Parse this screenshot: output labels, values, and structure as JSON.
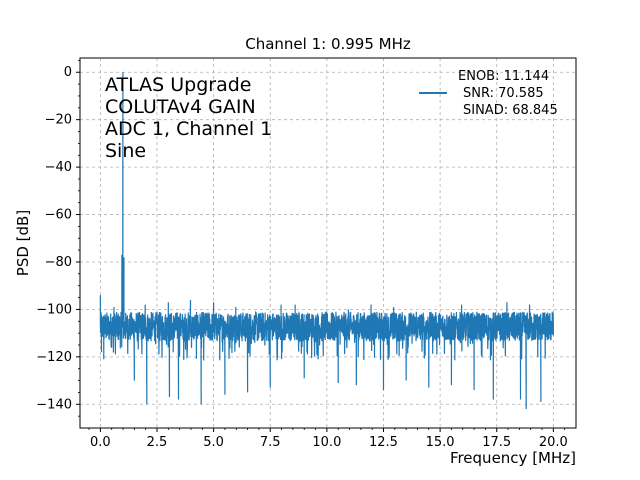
{
  "chart_data": {
    "type": "line",
    "title": "Channel 1: 0.995 MHz",
    "xlabel": "Frequency [MHz]",
    "ylabel": "PSD [dB]",
    "xlim": [
      -0.9,
      21.0
    ],
    "ylim": [
      -150,
      6
    ],
    "xticks": [
      0.0,
      2.5,
      5.0,
      7.5,
      10.0,
      12.5,
      15.0,
      17.5,
      20.0
    ],
    "xtick_labels": [
      "0.0",
      "2.5",
      "5.0",
      "7.5",
      "10.0",
      "12.5",
      "15.0",
      "17.5",
      "20.0"
    ],
    "yticks": [
      0,
      -20,
      -40,
      -60,
      -80,
      -100,
      -120,
      -140
    ],
    "ytick_labels": [
      "0",
      "−20",
      "−40",
      "−60",
      "−80",
      "−100",
      "−120",
      "−140"
    ],
    "grid": true,
    "legend_position": "top-right",
    "annotation_lines": [
      "ATLAS Upgrade",
      "COLUTAv4 GAIN",
      "ADC 1, Channel 1",
      "Sine"
    ],
    "series": [
      {
        "name": "ENOB: 11.144\n SNR: 70.585\n SINAD: 68.845",
        "legend_lines": [
          "ENOB: 11.144",
          "SNR: 70.585",
          "SINAD: 68.845"
        ],
        "color": "#1f77b4",
        "noise_floor_range": [
          -121,
          -101
        ],
        "points": [
          [
            0.0,
            -94
          ],
          [
            0.05,
            -118
          ],
          [
            0.1,
            -104
          ],
          [
            0.15,
            -121
          ],
          [
            0.2,
            -108
          ],
          [
            0.6,
            -99
          ],
          [
            0.8,
            -112
          ],
          [
            0.95,
            -77
          ],
          [
            0.995,
            0
          ],
          [
            1.04,
            -78
          ],
          [
            1.1,
            -110
          ],
          [
            1.5,
            -130
          ],
          [
            1.98,
            -98
          ],
          [
            2.05,
            -140
          ],
          [
            3.0,
            -97
          ],
          [
            3.05,
            -137
          ],
          [
            3.45,
            -138
          ],
          [
            3.98,
            -96
          ],
          [
            4.45,
            -140
          ],
          [
            5.0,
            -97
          ],
          [
            5.5,
            -136
          ],
          [
            5.98,
            -99
          ],
          [
            6.5,
            -135
          ],
          [
            7.0,
            -108
          ],
          [
            7.5,
            -133
          ],
          [
            7.98,
            -98
          ],
          [
            8.6,
            -98
          ],
          [
            9.0,
            -129
          ],
          [
            9.95,
            -101
          ],
          [
            10.5,
            -131
          ],
          [
            10.95,
            -100
          ],
          [
            11.3,
            -132
          ],
          [
            11.95,
            -98
          ],
          [
            12.5,
            -134
          ],
          [
            12.95,
            -99
          ],
          [
            13.5,
            -130
          ],
          [
            13.95,
            -101
          ],
          [
            14.5,
            -133
          ],
          [
            15.0,
            -103
          ],
          [
            15.5,
            -132
          ],
          [
            15.95,
            -98
          ],
          [
            16.5,
            -134
          ],
          [
            16.95,
            -104
          ],
          [
            17.35,
            -138
          ],
          [
            17.95,
            -97
          ],
          [
            18.55,
            -138
          ],
          [
            18.8,
            -142
          ],
          [
            18.95,
            -98
          ],
          [
            19.45,
            -139
          ],
          [
            19.95,
            -101
          ],
          [
            20.0,
            -111
          ]
        ]
      }
    ]
  }
}
